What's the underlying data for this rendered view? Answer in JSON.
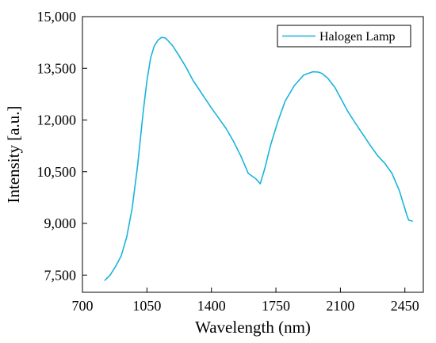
{
  "chart_data": {
    "type": "line",
    "xlabel": "Wavelength (nm)",
    "ylabel": "Intensity [a.u.]",
    "xlim": [
      700,
      2550
    ],
    "ylim": [
      7000,
      15000
    ],
    "x_ticks": [
      700,
      1050,
      1400,
      1750,
      2100,
      2450
    ],
    "x_tick_labels": [
      "700",
      "1050",
      "1400",
      "1750",
      "2100",
      "2450"
    ],
    "y_ticks": [
      7500,
      9000,
      10500,
      12000,
      13500,
      15000
    ],
    "y_tick_labels": [
      "7,500",
      "9,000",
      "10,500",
      "12,000",
      "13,500",
      "15,000"
    ],
    "grid": false,
    "legend_position": "top-right",
    "colors": {
      "series": "#18b4dc",
      "axis": "#000000"
    },
    "series": [
      {
        "name": "Halogen Lamp",
        "x": [
          822,
          850,
          880,
          910,
          940,
          970,
          1000,
          1030,
          1050,
          1070,
          1090,
          1110,
          1130,
          1150,
          1160,
          1190,
          1220,
          1260,
          1300,
          1350,
          1400,
          1440,
          1480,
          1520,
          1560,
          1600,
          1640,
          1665,
          1690,
          1720,
          1760,
          1800,
          1850,
          1900,
          1950,
          1980,
          2000,
          2030,
          2070,
          2100,
          2140,
          2180,
          2220,
          2260,
          2300,
          2340,
          2380,
          2400,
          2420,
          2440,
          2460,
          2470,
          2480,
          2490
        ],
        "y": [
          7350,
          7500,
          7750,
          8050,
          8600,
          9450,
          10700,
          12250,
          13150,
          13800,
          14150,
          14320,
          14400,
          14380,
          14330,
          14150,
          13900,
          13550,
          13150,
          12750,
          12350,
          12050,
          11750,
          11380,
          10950,
          10450,
          10300,
          10150,
          10600,
          11250,
          11950,
          12550,
          13000,
          13300,
          13400,
          13390,
          13350,
          13220,
          12950,
          12650,
          12250,
          11920,
          11600,
          11280,
          10980,
          10750,
          10450,
          10200,
          9950,
          9600,
          9250,
          9100,
          9080,
          9070
        ]
      }
    ]
  }
}
